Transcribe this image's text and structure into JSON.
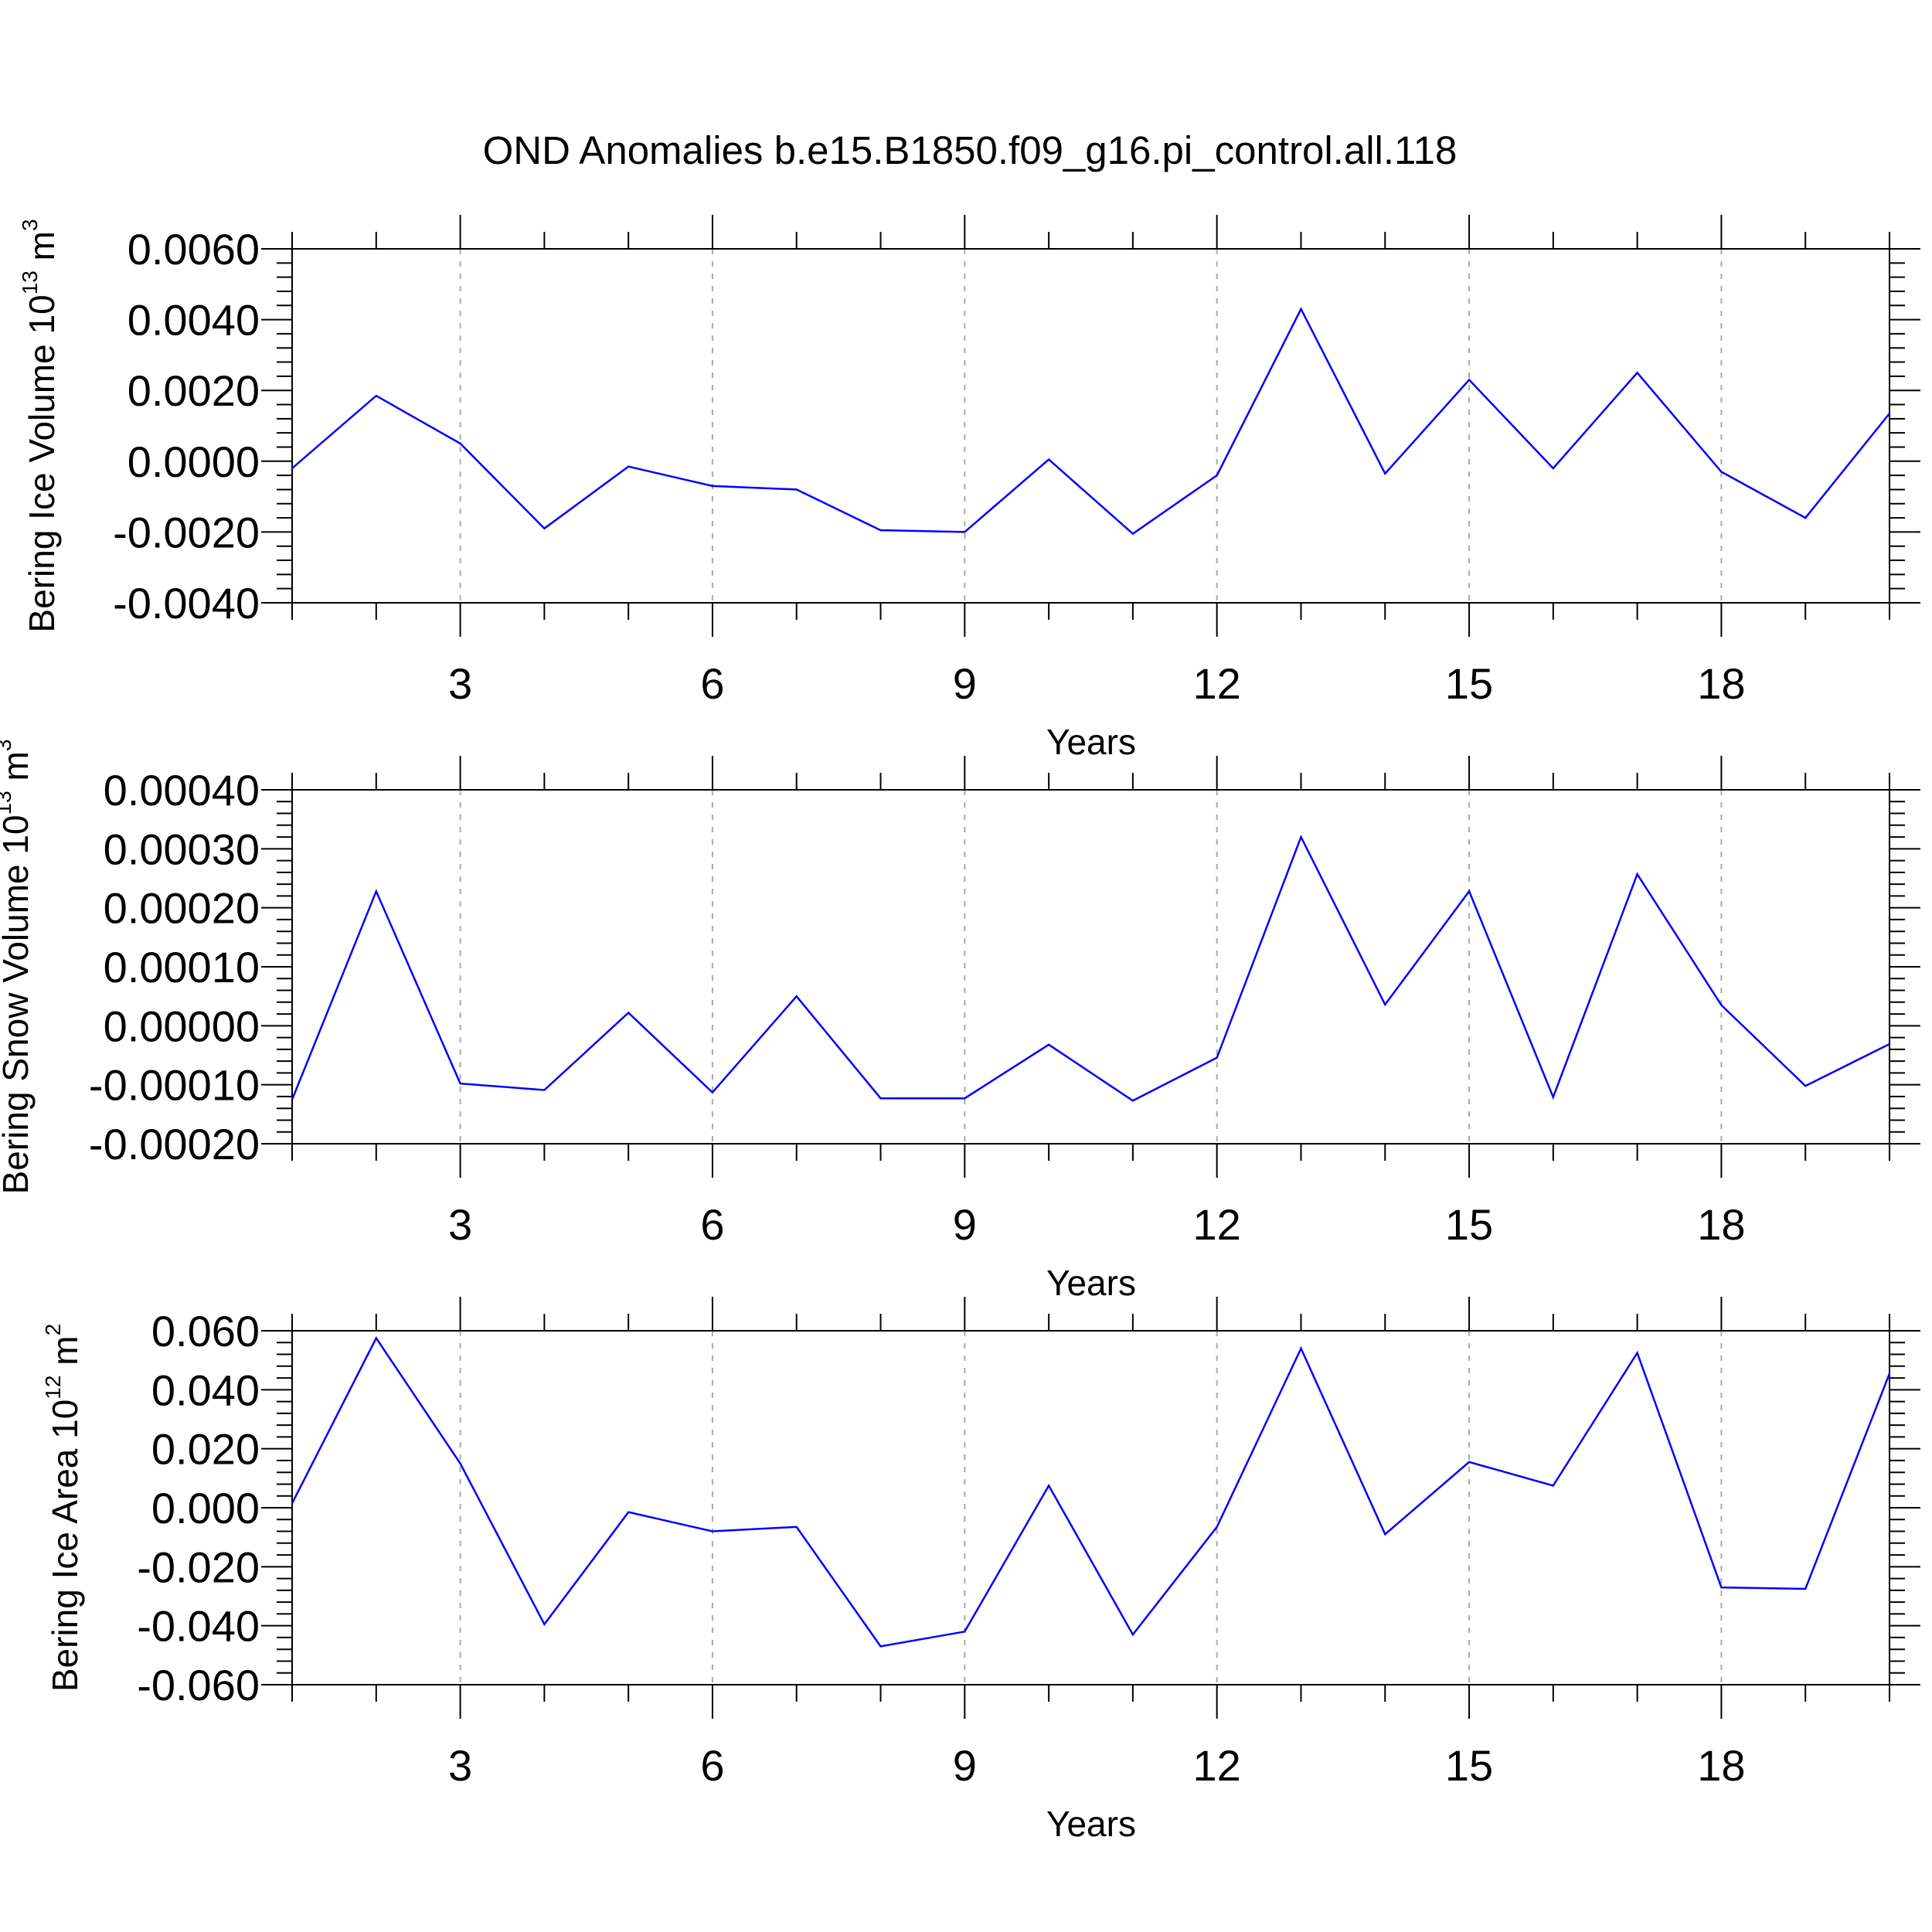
{
  "title": "OND Anomalies b.e15.B1850.f09_g16.pi_control.all.118",
  "chart_data": [
    {
      "type": "line",
      "ylabel": {
        "main": "Bering Ice Volume 10",
        "sup": "13",
        "unit": " m",
        "unit_sup": "3"
      },
      "xlabel": "Years",
      "xlim": [
        1,
        20
      ],
      "ylim": [
        -0.004,
        0.006
      ],
      "x_ticks": [
        3,
        6,
        9,
        12,
        15,
        18
      ],
      "x_tick_labels": [
        "3",
        "6",
        "9",
        "12",
        "15",
        "18"
      ],
      "y_ticks": [
        -0.004,
        -0.002,
        0.0,
        0.002,
        0.004,
        0.006
      ],
      "y_tick_labels": [
        "-0.0040",
        "-0.0020",
        "0.0000",
        "0.0020",
        "0.0040",
        "0.0060"
      ],
      "grid": "vertical dashed at major x ticks",
      "line_color": "#0000ff",
      "series": [
        {
          "x": [
            1,
            2,
            3,
            4,
            5,
            6,
            7,
            8,
            9,
            10,
            11,
            12,
            13,
            14,
            15,
            16,
            17,
            18,
            19,
            20
          ],
          "values": [
            -0.0002,
            0.00185,
            0.0005,
            -0.0019,
            -0.00015,
            -0.0007,
            -0.0008,
            -0.00195,
            -0.002,
            5e-05,
            -0.00205,
            -0.0004,
            0.0043,
            -0.00035,
            0.0023,
            -0.0002,
            0.0025,
            -0.0003,
            -0.0016,
            0.00135
          ]
        }
      ]
    },
    {
      "type": "line",
      "ylabel": {
        "main": "Bering Snow Volume 10",
        "sup": "13",
        "unit": " m",
        "unit_sup": "3"
      },
      "xlabel": "Years",
      "xlim": [
        1,
        20
      ],
      "ylim": [
        -0.0002,
        0.0004
      ],
      "x_ticks": [
        3,
        6,
        9,
        12,
        15,
        18
      ],
      "x_tick_labels": [
        "3",
        "6",
        "9",
        "12",
        "15",
        "18"
      ],
      "y_ticks": [
        -0.0002,
        -0.0001,
        0.0,
        0.0001,
        0.0002,
        0.0003,
        0.0004
      ],
      "y_tick_labels": [
        "-0.00020",
        "-0.00010",
        "0.00000",
        "0.00010",
        "0.00020",
        "0.00030",
        "0.00040"
      ],
      "grid": "vertical dashed at major x ticks",
      "line_color": "#0000ff",
      "series": [
        {
          "x": [
            1,
            2,
            3,
            4,
            5,
            6,
            7,
            8,
            9,
            10,
            11,
            12,
            13,
            14,
            15,
            16,
            17,
            18,
            19,
            20
          ],
          "values": [
            -0.000125,
            0.000228,
            -9.8e-05,
            -0.000109,
            2.2e-05,
            -0.000113,
            5e-05,
            -0.000123,
            -0.000123,
            -3.2e-05,
            -0.000127,
            -5.4e-05,
            0.00032,
            3.6e-05,
            0.000228,
            -0.000121,
            0.000257,
            3.5e-05,
            -0.000102,
            -3.1e-05
          ]
        }
      ]
    },
    {
      "type": "line",
      "ylabel": {
        "main": "Bering Ice Area 10",
        "sup": "12",
        "unit": " m",
        "unit_sup": "2"
      },
      "xlabel": "Years",
      "xlim": [
        1,
        20
      ],
      "ylim": [
        -0.06,
        0.06
      ],
      "x_ticks": [
        3,
        6,
        9,
        12,
        15,
        18
      ],
      "x_tick_labels": [
        "3",
        "6",
        "9",
        "12",
        "15",
        "18"
      ],
      "y_ticks": [
        -0.06,
        -0.04,
        -0.02,
        0.0,
        0.02,
        0.04,
        0.06
      ],
      "y_tick_labels": [
        "-0.060",
        "-0.040",
        "-0.020",
        "0.000",
        "0.020",
        "0.040",
        "0.060"
      ],
      "grid": "vertical dashed at major x ticks",
      "line_color": "#0000ff",
      "series": [
        {
          "x": [
            1,
            2,
            3,
            4,
            5,
            6,
            7,
            8,
            9,
            10,
            11,
            12,
            13,
            14,
            15,
            16,
            17,
            18,
            19,
            20
          ],
          "values": [
            0.0015,
            0.0575,
            0.015,
            -0.0395,
            -0.0015,
            -0.008,
            -0.0065,
            -0.047,
            -0.042,
            0.0075,
            -0.043,
            -0.0065,
            0.054,
            -0.009,
            0.0155,
            0.0075,
            0.0525,
            -0.027,
            -0.0275,
            0.0455
          ]
        }
      ]
    }
  ]
}
